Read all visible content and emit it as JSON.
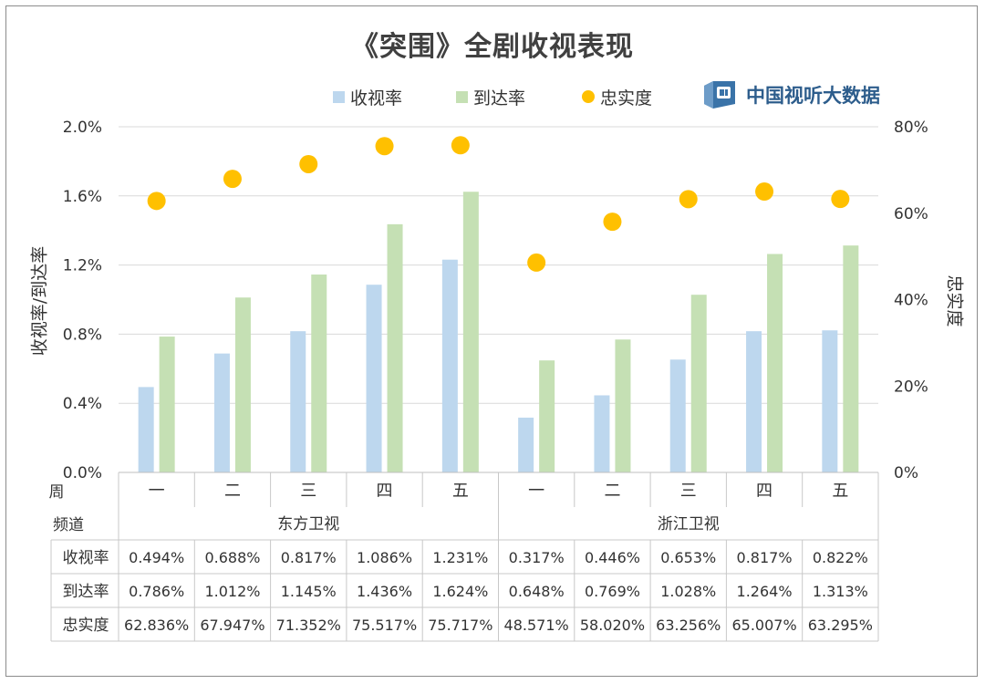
{
  "title": "《突围》全剧收视表现",
  "brand": {
    "name": "中国视听大数据",
    "icon": "tv-book-logo-icon"
  },
  "legend": [
    {
      "label": "收视率",
      "color": "#bdd7ee",
      "shape": "square"
    },
    {
      "label": "到达率",
      "color": "#c5e0b4",
      "shape": "square"
    },
    {
      "label": "忠实度",
      "color": "#ffc000",
      "shape": "circle"
    }
  ],
  "colors": {
    "rating": "#bdd7ee",
    "reach": "#c5e0b4",
    "loyalty": "#ffc000",
    "grid": "#d9d9d9"
  },
  "chart_data": {
    "type": "bar",
    "categories": [
      "一",
      "二",
      "三",
      "四",
      "五",
      "一",
      "二",
      "三",
      "四",
      "五"
    ],
    "groups": [
      {
        "name": "东方卫视",
        "span": 5
      },
      {
        "name": "浙江卫视",
        "span": 5
      }
    ],
    "row_headers": {
      "week": "周",
      "channel": "频道"
    },
    "series": [
      {
        "name": "收视率",
        "axis": "left",
        "type": "bar",
        "values": [
          0.494,
          0.688,
          0.817,
          1.086,
          1.231,
          0.317,
          0.446,
          0.653,
          0.817,
          0.822
        ],
        "labels": [
          "0.494%",
          "0.688%",
          "0.817%",
          "1.086%",
          "1.231%",
          "0.317%",
          "0.446%",
          "0.653%",
          "0.817%",
          "0.822%"
        ]
      },
      {
        "name": "到达率",
        "axis": "left",
        "type": "bar",
        "values": [
          0.786,
          1.012,
          1.145,
          1.436,
          1.624,
          0.648,
          0.769,
          1.028,
          1.264,
          1.313
        ],
        "labels": [
          "0.786%",
          "1.012%",
          "1.145%",
          "1.436%",
          "1.624%",
          "0.648%",
          "0.769%",
          "1.028%",
          "1.264%",
          "1.313%"
        ]
      },
      {
        "name": "忠实度",
        "axis": "right",
        "type": "scatter",
        "values": [
          62.836,
          67.947,
          71.352,
          75.517,
          75.717,
          48.571,
          58.02,
          63.256,
          65.007,
          63.295
        ],
        "labels": [
          "62.836%",
          "67.947%",
          "71.352%",
          "75.517%",
          "75.717%",
          "48.571%",
          "58.020%",
          "63.256%",
          "65.007%",
          "63.295%"
        ]
      }
    ],
    "ylabel": "收视率/到达率",
    "y2label": "忠实度",
    "ylim": [
      0,
      2.0
    ],
    "y2lim": [
      0,
      80
    ],
    "yticks": [
      "0.0%",
      "0.4%",
      "0.8%",
      "1.2%",
      "1.6%",
      "2.0%"
    ],
    "y2ticks": [
      "0%",
      "20%",
      "40%",
      "60%",
      "80%"
    ],
    "grid": true,
    "legend_position": "top",
    "data_table": true
  }
}
